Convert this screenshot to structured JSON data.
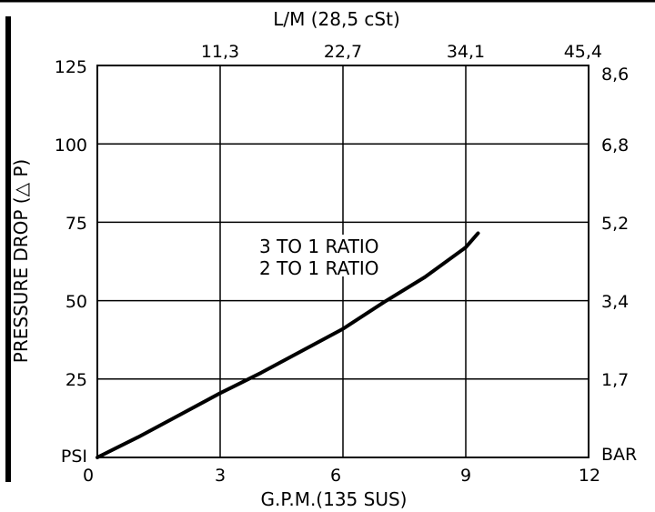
{
  "chart_data": {
    "type": "line",
    "top_axis_label": "L/M (28,5 cSt)",
    "top_ticks": [
      "11,3",
      "22,7",
      "34,1",
      "45,4"
    ],
    "xlabel": "G.P.M.(135 SUS)",
    "ylabel": "PRESSURE DROP (△ P)",
    "left_unit": "PSI",
    "right_unit": "BAR",
    "x_ticks": [
      "0",
      "3",
      "6",
      "9",
      "12"
    ],
    "y_ticks": [
      "25",
      "50",
      "75",
      "100",
      "125"
    ],
    "right_ticks": [
      "1,7",
      "3,4",
      "5,2",
      "6,8",
      "8,6"
    ],
    "xlim": [
      0,
      12
    ],
    "ylim": [
      0,
      125
    ],
    "grid": true,
    "annotations": [
      "3 TO 1 RATIO",
      "2 TO 1 RATIO"
    ],
    "series": [
      {
        "x": [
          0,
          1,
          2,
          3,
          4,
          5,
          6,
          7,
          8,
          9,
          9.3
        ],
        "y": [
          0,
          6.5,
          13.5,
          20.5,
          27,
          34,
          41,
          49.5,
          57.5,
          67,
          71.5
        ]
      }
    ]
  }
}
